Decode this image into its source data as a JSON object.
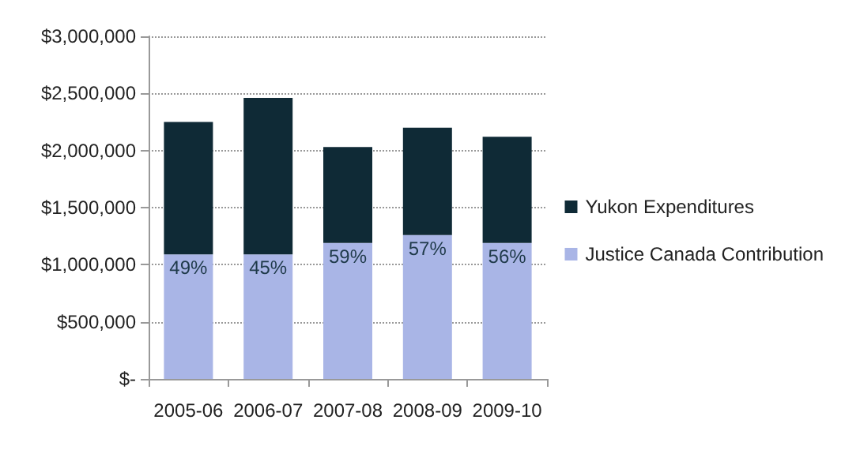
{
  "chart_data": {
    "type": "bar",
    "stacked": true,
    "categories": [
      "2005-06",
      "2006-07",
      "2007-08",
      "2008-09",
      "2009-10"
    ],
    "series": [
      {
        "name": "Justice Canada Contribution",
        "color": "#a9b5e6",
        "values": [
          1090000,
          1090000,
          1190000,
          1260000,
          1190000
        ]
      },
      {
        "name": "Yukon Expenditures",
        "color": "#0f2a36",
        "values": [
          1160000,
          1370000,
          840000,
          940000,
          930000
        ]
      }
    ],
    "ylim": [
      0,
      3000000
    ],
    "yticks": [
      {
        "value": 0,
        "label": "$-"
      },
      {
        "value": 500000,
        "label": "$500,000"
      },
      {
        "value": 1000000,
        "label": "$1,000,000"
      },
      {
        "value": 1500000,
        "label": "$1,500,000"
      },
      {
        "value": 2000000,
        "label": "$2,000,000"
      },
      {
        "value": 2500000,
        "label": "$2,500,000"
      },
      {
        "value": 3000000,
        "label": "$3,000,000"
      }
    ],
    "annotations": [
      {
        "text": "49%",
        "x": "2005-06",
        "y": 1090000
      },
      {
        "text": "45%",
        "x": "2006-07",
        "y": 1090000
      },
      {
        "text": "59%",
        "x": "2007-08",
        "y": 1190000
      },
      {
        "text": "57%",
        "x": "2008-09",
        "y": 1260000
      },
      {
        "text": "56%",
        "x": "2009-10",
        "y": 1190000
      }
    ],
    "grid": "y",
    "legend": "right"
  }
}
